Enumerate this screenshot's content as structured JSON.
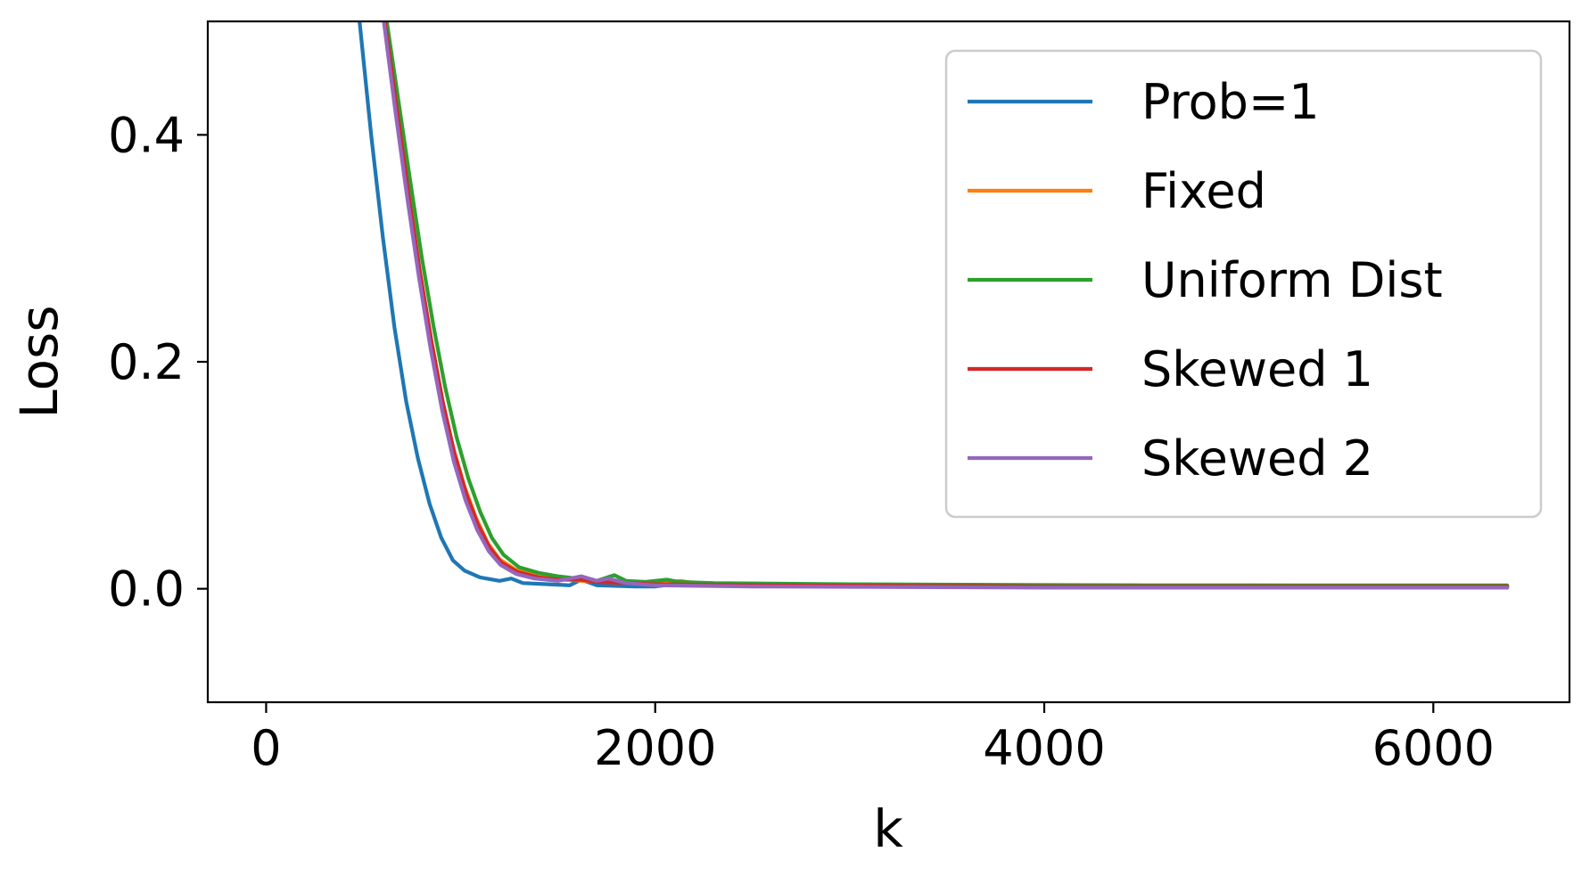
{
  "chart_data": {
    "type": "line",
    "title": "",
    "xlabel": "k",
    "ylabel": "Loss",
    "xlim": [
      -300,
      6700
    ],
    "ylim": [
      -0.1,
      0.5
    ],
    "x_ticks": [
      0,
      2000,
      4000,
      6000
    ],
    "x_tick_labels": [
      "0",
      "2000",
      "4000",
      "6000"
    ],
    "y_ticks": [
      0.0,
      0.2,
      0.4
    ],
    "y_tick_labels": [
      "0.0",
      "0.2",
      "0.4"
    ],
    "grid": false,
    "legend_position": "top-right",
    "series": [
      {
        "name": "Prob=1",
        "color": "#1f77b4",
        "points": [
          [
            480,
            0.5
          ],
          [
            540,
            0.4
          ],
          [
            600,
            0.31
          ],
          [
            660,
            0.23
          ],
          [
            720,
            0.165
          ],
          [
            780,
            0.115
          ],
          [
            840,
            0.075
          ],
          [
            900,
            0.045
          ],
          [
            960,
            0.025
          ],
          [
            1020,
            0.016
          ],
          [
            1100,
            0.01
          ],
          [
            1200,
            0.007
          ],
          [
            1260,
            0.009
          ],
          [
            1320,
            0.005
          ],
          [
            1450,
            0.004
          ],
          [
            1560,
            0.003
          ],
          [
            1620,
            0.008
          ],
          [
            1700,
            0.003
          ],
          [
            1900,
            0.002
          ],
          [
            2000,
            0.002
          ],
          [
            2100,
            0.004
          ],
          [
            2500,
            0.003
          ],
          [
            3500,
            0.002
          ],
          [
            4500,
            0.002
          ],
          [
            5500,
            0.001
          ],
          [
            6380,
            0.001
          ]
        ]
      },
      {
        "name": "Fixed",
        "color": "#ff7f0e",
        "points": [
          [
            610,
            0.5
          ],
          [
            660,
            0.43
          ],
          [
            720,
            0.355
          ],
          [
            780,
            0.285
          ],
          [
            840,
            0.225
          ],
          [
            900,
            0.17
          ],
          [
            960,
            0.125
          ],
          [
            1020,
            0.09
          ],
          [
            1080,
            0.062
          ],
          [
            1140,
            0.04
          ],
          [
            1200,
            0.026
          ],
          [
            1280,
            0.017
          ],
          [
            1380,
            0.012
          ],
          [
            1500,
            0.009
          ],
          [
            1620,
            0.007
          ],
          [
            1750,
            0.006
          ],
          [
            1900,
            0.005
          ],
          [
            2000,
            0.004
          ],
          [
            2130,
            0.007
          ],
          [
            2200,
            0.005
          ],
          [
            2800,
            0.004
          ],
          [
            4000,
            0.003
          ],
          [
            5000,
            0.003
          ],
          [
            6380,
            0.002
          ]
        ]
      },
      {
        "name": "Uniform Dist",
        "color": "#2ca02c",
        "points": [
          [
            620,
            0.5
          ],
          [
            680,
            0.43
          ],
          [
            740,
            0.36
          ],
          [
            800,
            0.292
          ],
          [
            860,
            0.232
          ],
          [
            920,
            0.178
          ],
          [
            980,
            0.133
          ],
          [
            1040,
            0.097
          ],
          [
            1100,
            0.068
          ],
          [
            1160,
            0.045
          ],
          [
            1220,
            0.03
          ],
          [
            1300,
            0.019
          ],
          [
            1400,
            0.014
          ],
          [
            1500,
            0.011
          ],
          [
            1600,
            0.009
          ],
          [
            1700,
            0.007
          ],
          [
            1790,
            0.012
          ],
          [
            1850,
            0.007
          ],
          [
            1950,
            0.006
          ],
          [
            2060,
            0.008
          ],
          [
            2120,
            0.006
          ],
          [
            2300,
            0.005
          ],
          [
            3000,
            0.004
          ],
          [
            4500,
            0.003
          ],
          [
            6380,
            0.003
          ]
        ]
      },
      {
        "name": "Skewed 1",
        "color": "#d62728",
        "points": [
          [
            610,
            0.5
          ],
          [
            670,
            0.425
          ],
          [
            730,
            0.35
          ],
          [
            790,
            0.28
          ],
          [
            850,
            0.218
          ],
          [
            910,
            0.163
          ],
          [
            970,
            0.118
          ],
          [
            1030,
            0.083
          ],
          [
            1090,
            0.056
          ],
          [
            1150,
            0.036
          ],
          [
            1210,
            0.023
          ],
          [
            1290,
            0.015
          ],
          [
            1400,
            0.01
          ],
          [
            1500,
            0.008
          ],
          [
            1620,
            0.008
          ],
          [
            1700,
            0.006
          ],
          [
            1850,
            0.005
          ],
          [
            2000,
            0.004
          ],
          [
            2500,
            0.003
          ],
          [
            4000,
            0.002
          ],
          [
            6380,
            0.002
          ]
        ]
      },
      {
        "name": "Skewed 2",
        "color": "#9467bd",
        "points": [
          [
            605,
            0.5
          ],
          [
            665,
            0.42
          ],
          [
            725,
            0.345
          ],
          [
            785,
            0.275
          ],
          [
            845,
            0.212
          ],
          [
            905,
            0.157
          ],
          [
            965,
            0.112
          ],
          [
            1025,
            0.078
          ],
          [
            1085,
            0.052
          ],
          [
            1145,
            0.033
          ],
          [
            1205,
            0.021
          ],
          [
            1285,
            0.013
          ],
          [
            1380,
            0.009
          ],
          [
            1500,
            0.007
          ],
          [
            1620,
            0.011
          ],
          [
            1700,
            0.007
          ],
          [
            1760,
            0.009
          ],
          [
            1850,
            0.005
          ],
          [
            2000,
            0.003
          ],
          [
            2500,
            0.002
          ],
          [
            4000,
            0.001
          ],
          [
            6380,
            0.001
          ]
        ]
      }
    ]
  }
}
